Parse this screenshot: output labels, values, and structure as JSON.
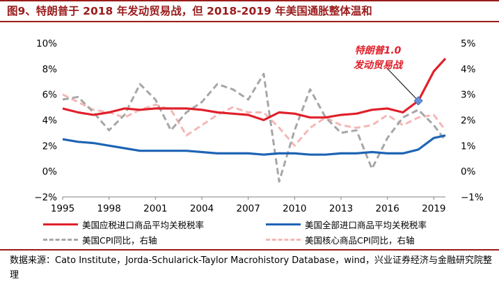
{
  "title": "图9、特朗普于 2018 年发动贸易战，但 2018-2019 年美国通胀整体温和",
  "source": "数据来源：Cato Institute，Jorda-Schularick-Taylor Macrohistory Database，wind，兴业证券经济与金融研究院整理",
  "colors": {
    "title": "#9b1b1b",
    "annotation": "#e0202a",
    "marker": "#6b8fd6"
  },
  "chart_data": {
    "type": "line",
    "x_ticks": [
      "1995",
      "1998",
      "2001",
      "2004",
      "2007",
      "2010",
      "2013",
      "2016",
      "2019"
    ],
    "x_range": [
      1995,
      2019.75
    ],
    "ylim_left": [
      -2,
      10
    ],
    "ylim_right": [
      -1,
      5
    ],
    "left_tick_labels": [
      "10%",
      "8%",
      "6%",
      "4%",
      "2%",
      "0%",
      "−2%"
    ],
    "right_tick_labels": [
      "5%",
      "4%",
      "3%",
      "2%",
      "1%",
      "0%",
      "−1%"
    ],
    "annotation": {
      "line1": "特朗普1.0",
      "line2": "发动贸易战",
      "point": [
        2018,
        5.5
      ]
    },
    "series": [
      {
        "name": "美国应税进口商品平均关税税率",
        "axis": "left",
        "color": "#e0202a",
        "style": "solid",
        "x": [
          1995,
          1996,
          1997,
          1998,
          1999,
          2000,
          2001,
          2002,
          2003,
          2004,
          2005,
          2006,
          2007,
          2008,
          2009,
          2010,
          2011,
          2012,
          2013,
          2014,
          2015,
          2016,
          2017,
          2018,
          2019,
          2019.75
        ],
        "y": [
          4.9,
          4.6,
          4.4,
          4.6,
          4.9,
          4.8,
          4.9,
          4.9,
          4.9,
          4.8,
          4.6,
          4.5,
          4.4,
          4.0,
          4.6,
          4.5,
          4.2,
          4.2,
          4.4,
          4.5,
          4.8,
          4.9,
          4.6,
          5.5,
          7.8,
          8.8
        ]
      },
      {
        "name": "美国全部进口商品平均关税税率",
        "axis": "left",
        "color": "#1e64b4",
        "style": "solid",
        "x": [
          1995,
          1996,
          1997,
          1998,
          1999,
          2000,
          2001,
          2002,
          2003,
          2004,
          2005,
          2006,
          2007,
          2008,
          2009,
          2010,
          2011,
          2012,
          2013,
          2014,
          2015,
          2016,
          2017,
          2018,
          2019,
          2019.75
        ],
        "y": [
          2.5,
          2.3,
          2.2,
          2.0,
          1.8,
          1.6,
          1.6,
          1.6,
          1.6,
          1.5,
          1.4,
          1.4,
          1.4,
          1.3,
          1.4,
          1.4,
          1.3,
          1.3,
          1.4,
          1.4,
          1.5,
          1.4,
          1.4,
          1.7,
          2.6,
          2.8
        ]
      },
      {
        "name": "美国CPI同比，右轴",
        "axis": "right",
        "color": "#a6a6a6",
        "style": "dash",
        "x": [
          1995,
          1996,
          1997,
          1998,
          1999,
          2000,
          2001,
          2002,
          2003,
          2004,
          2005,
          2006,
          2007,
          2008,
          2009,
          2010,
          2011,
          2012,
          2013,
          2014,
          2015,
          2016,
          2017,
          2018,
          2019,
          2019.75
        ],
        "y": [
          2.8,
          2.9,
          2.3,
          1.6,
          2.2,
          3.4,
          2.8,
          1.6,
          2.3,
          2.7,
          3.4,
          3.2,
          2.8,
          3.8,
          -0.4,
          1.6,
          3.2,
          2.1,
          1.5,
          1.6,
          0.1,
          1.3,
          2.1,
          2.4,
          1.8,
          1.2
        ]
      },
      {
        "name": "美国核心商品CPI同比，右轴",
        "axis": "right",
        "color": "#f4b8b5",
        "style": "dash",
        "x": [
          1995,
          1996,
          1997,
          1998,
          1999,
          2000,
          2001,
          2002,
          2003,
          2004,
          2005,
          2006,
          2007,
          2008,
          2009,
          2010,
          2011,
          2012,
          2013,
          2014,
          2015,
          2016,
          2017,
          2018,
          2019,
          2019.75
        ],
        "y": [
          3.0,
          2.7,
          2.4,
          2.3,
          2.1,
          2.4,
          2.6,
          2.4,
          1.4,
          1.8,
          2.2,
          2.5,
          2.3,
          2.3,
          1.7,
          1.0,
          1.7,
          2.1,
          1.8,
          1.7,
          1.8,
          2.2,
          1.8,
          2.1,
          2.2,
          1.6
        ]
      }
    ]
  }
}
